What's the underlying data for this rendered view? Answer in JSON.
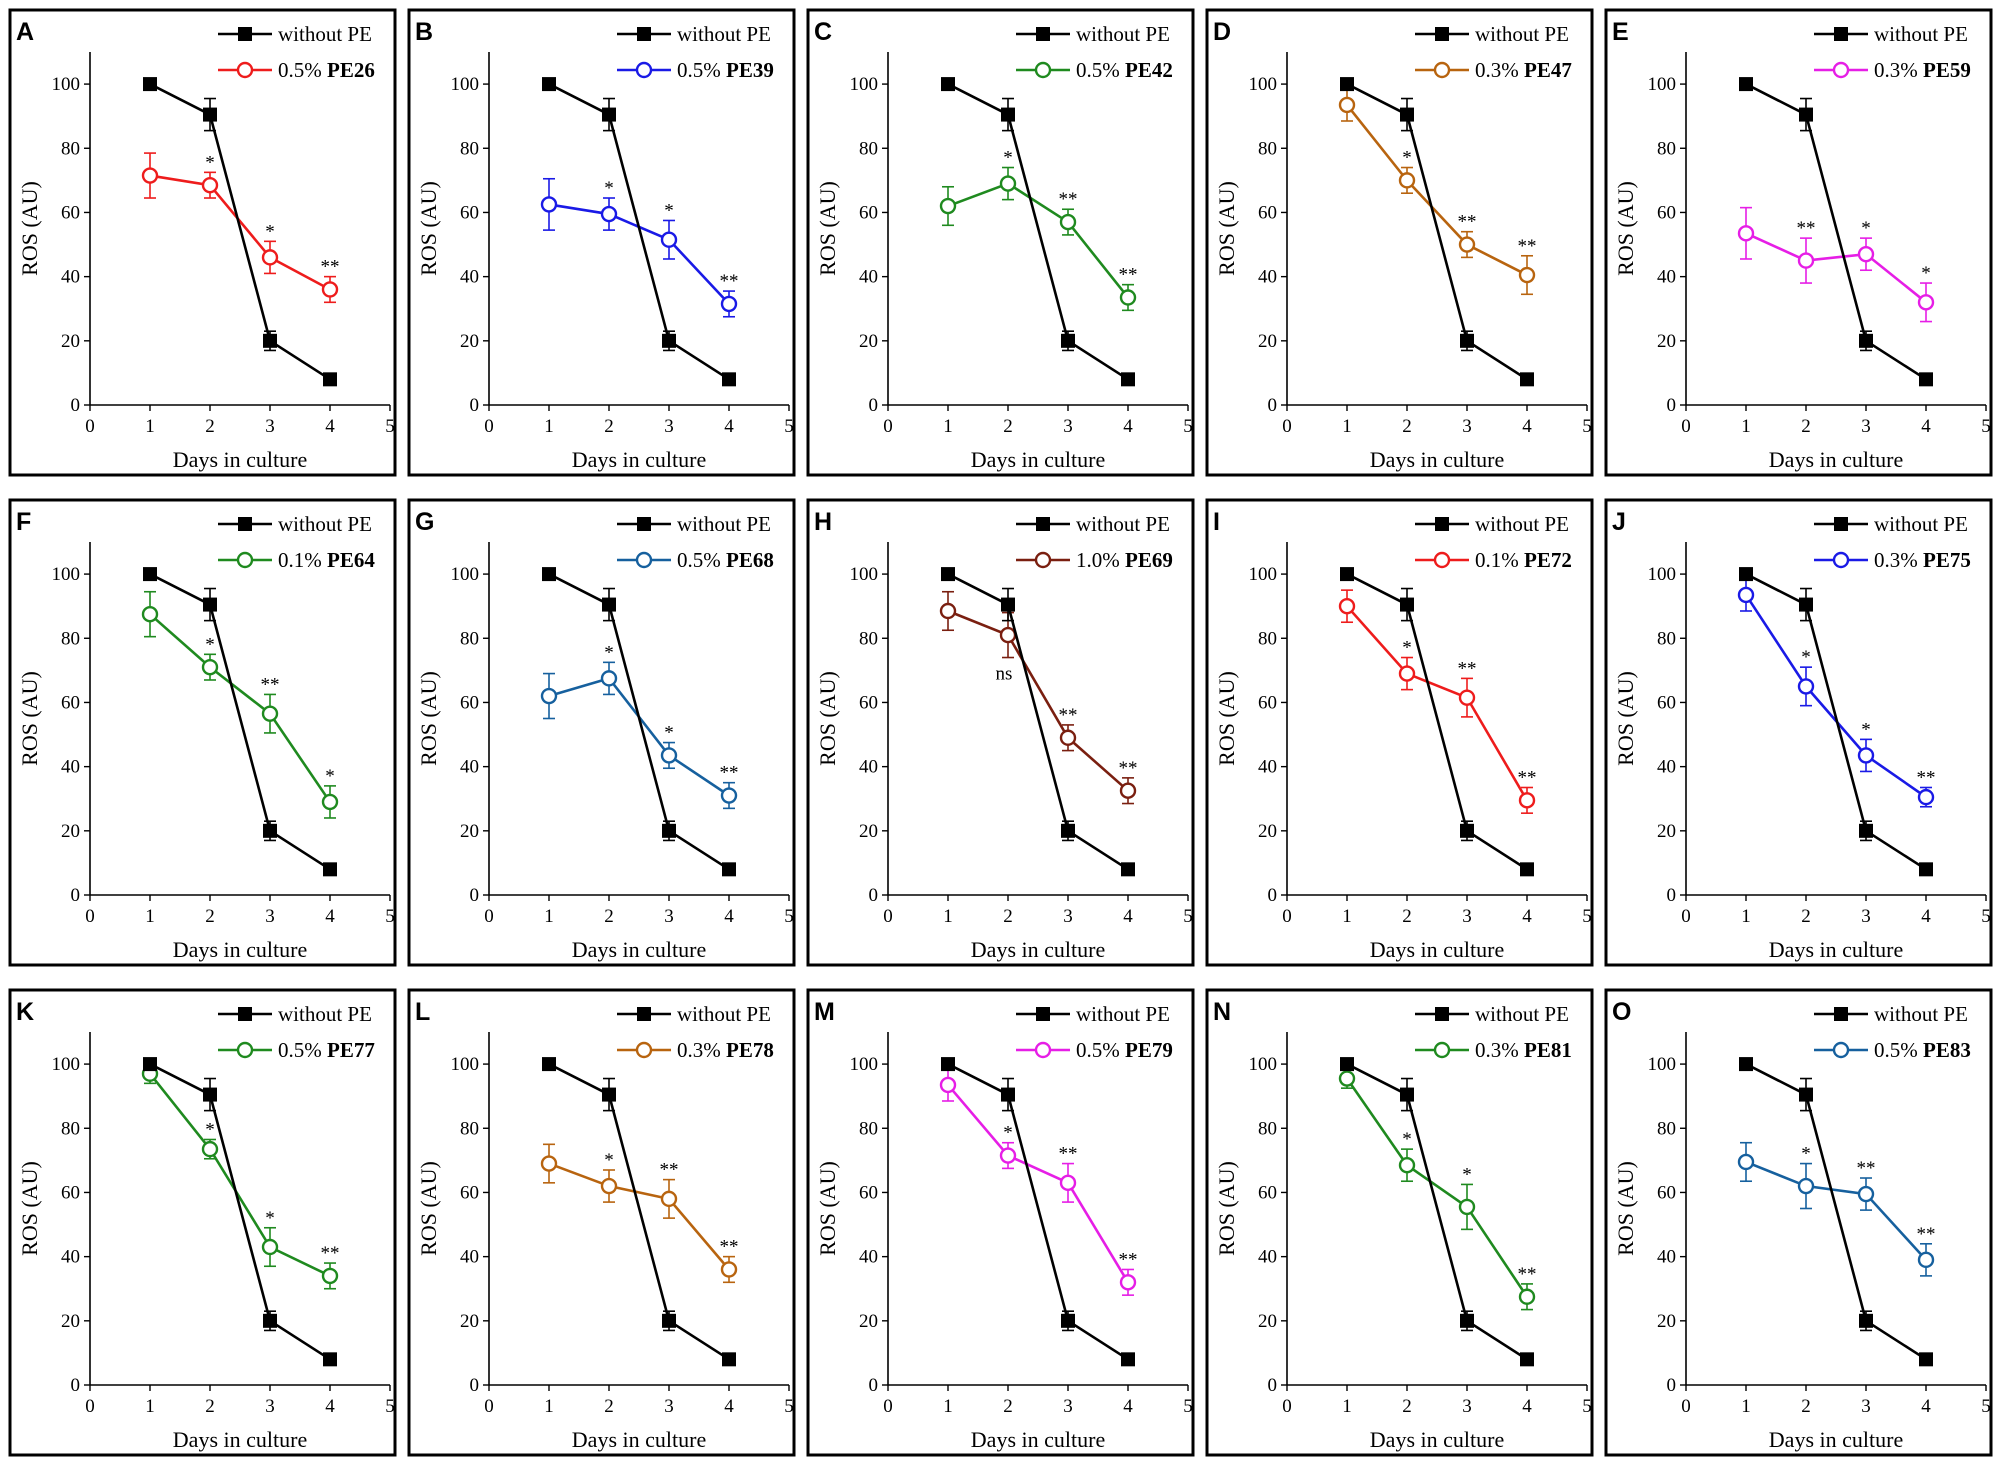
{
  "figure": {
    "control_name": "without PE",
    "x_axis_label": "Days in culture",
    "y_axis_label": "ROS (AU)"
  },
  "chart_data": [
    {
      "panel": "A",
      "type": "line",
      "x": [
        1,
        2,
        3,
        4
      ],
      "xlim": [
        0,
        5
      ],
      "ylim": [
        0,
        110
      ],
      "xticks": [
        0,
        1,
        2,
        3,
        4,
        5
      ],
      "yticks": [
        0,
        20,
        40,
        60,
        80,
        100
      ],
      "xlabel": "Days in culture",
      "ylabel": "ROS (AU)",
      "legend": "top-right",
      "series": [
        {
          "name": "without PE",
          "values": [
            100,
            90.5,
            20,
            8
          ],
          "errors": [
            0,
            5,
            3,
            1
          ],
          "color": "#000000",
          "marker": "filled-square"
        },
        {
          "name": "0.5% PE26",
          "name_prefix": "0.5%",
          "name_bold": "PE26",
          "values": [
            71.5,
            68.5,
            46,
            36
          ],
          "errors": [
            7,
            4,
            5,
            4
          ],
          "color": "#ee1c1c",
          "marker": "open-circle",
          "sig": [
            "",
            "*",
            "*",
            "**"
          ]
        }
      ]
    },
    {
      "panel": "B",
      "type": "line",
      "x": [
        1,
        2,
        3,
        4
      ],
      "xlim": [
        0,
        5
      ],
      "ylim": [
        0,
        110
      ],
      "xticks": [
        0,
        1,
        2,
        3,
        4,
        5
      ],
      "yticks": [
        0,
        20,
        40,
        60,
        80,
        100
      ],
      "xlabel": "Days in culture",
      "ylabel": "ROS (AU)",
      "legend": "top-right",
      "series": [
        {
          "name": "without PE",
          "values": [
            100,
            90.5,
            20,
            8
          ],
          "errors": [
            0,
            5,
            3,
            1
          ],
          "color": "#000000",
          "marker": "filled-square"
        },
        {
          "name": "0.5% PE39",
          "name_prefix": "0.5%",
          "name_bold": "PE39",
          "values": [
            62.5,
            59.5,
            51.5,
            31.5
          ],
          "errors": [
            8,
            5,
            6,
            4
          ],
          "color": "#1a1ae6",
          "marker": "open-circle",
          "sig": [
            "",
            "*",
            "*",
            "**"
          ]
        }
      ]
    },
    {
      "panel": "C",
      "type": "line",
      "x": [
        1,
        2,
        3,
        4
      ],
      "xlim": [
        0,
        5
      ],
      "ylim": [
        0,
        110
      ],
      "xticks": [
        0,
        1,
        2,
        3,
        4,
        5
      ],
      "yticks": [
        0,
        20,
        40,
        60,
        80,
        100
      ],
      "xlabel": "Days in culture",
      "ylabel": "ROS (AU)",
      "legend": "top-right",
      "series": [
        {
          "name": "without PE",
          "values": [
            100,
            90.5,
            20,
            8
          ],
          "errors": [
            0,
            5,
            3,
            1
          ],
          "color": "#000000",
          "marker": "filled-square"
        },
        {
          "name": "0.5% PE42",
          "name_prefix": "0.5%",
          "name_bold": "PE42",
          "values": [
            62,
            69,
            57,
            33.5
          ],
          "errors": [
            6,
            5,
            4,
            4
          ],
          "color": "#1f8a1f",
          "marker": "open-circle",
          "sig": [
            "",
            "*",
            "**",
            "**"
          ]
        }
      ]
    },
    {
      "panel": "D",
      "type": "line",
      "x": [
        1,
        2,
        3,
        4
      ],
      "xlim": [
        0,
        5
      ],
      "ylim": [
        0,
        110
      ],
      "xticks": [
        0,
        1,
        2,
        3,
        4,
        5
      ],
      "yticks": [
        0,
        20,
        40,
        60,
        80,
        100
      ],
      "xlabel": "Days in culture",
      "ylabel": "ROS (AU)",
      "legend": "top-right",
      "series": [
        {
          "name": "without PE",
          "values": [
            100,
            90.5,
            20,
            8
          ],
          "errors": [
            0,
            5,
            3,
            1
          ],
          "color": "#000000",
          "marker": "filled-square"
        },
        {
          "name": "0.3% PE47",
          "name_prefix": "0.3%",
          "name_bold": "PE47",
          "values": [
            93.5,
            70,
            50,
            40.5
          ],
          "errors": [
            5,
            4,
            4,
            6
          ],
          "color": "#b8640f",
          "marker": "open-circle",
          "sig": [
            "",
            "*",
            "**",
            "**"
          ]
        }
      ]
    },
    {
      "panel": "E",
      "type": "line",
      "x": [
        1,
        2,
        3,
        4
      ],
      "xlim": [
        0,
        5
      ],
      "ylim": [
        0,
        110
      ],
      "xticks": [
        0,
        1,
        2,
        3,
        4,
        5
      ],
      "yticks": [
        0,
        20,
        40,
        60,
        80,
        100
      ],
      "xlabel": "Days in culture",
      "ylabel": "ROS (AU)",
      "legend": "top-right",
      "series": [
        {
          "name": "without PE",
          "values": [
            100,
            90.5,
            20,
            8
          ],
          "errors": [
            0,
            5,
            3,
            1
          ],
          "color": "#000000",
          "marker": "filled-square"
        },
        {
          "name": "0.3% PE59",
          "name_prefix": "0.3%",
          "name_bold": "PE59",
          "values": [
            53.5,
            45,
            47,
            32
          ],
          "errors": [
            8,
            7,
            5,
            6
          ],
          "color": "#e61ee6",
          "marker": "open-circle",
          "sig": [
            "",
            "**",
            "*",
            "*"
          ]
        }
      ]
    },
    {
      "panel": "F",
      "type": "line",
      "x": [
        1,
        2,
        3,
        4
      ],
      "xlim": [
        0,
        5
      ],
      "ylim": [
        0,
        110
      ],
      "xticks": [
        0,
        1,
        2,
        3,
        4,
        5
      ],
      "yticks": [
        0,
        20,
        40,
        60,
        80,
        100
      ],
      "xlabel": "Days in culture",
      "ylabel": "ROS (AU)",
      "legend": "top-right",
      "series": [
        {
          "name": "without PE",
          "values": [
            100,
            90.5,
            20,
            8
          ],
          "errors": [
            0,
            5,
            3,
            1
          ],
          "color": "#000000",
          "marker": "filled-square"
        },
        {
          "name": "0.1% PE64",
          "name_prefix": "0.1%",
          "name_bold": "PE64",
          "values": [
            87.5,
            71,
            56.5,
            29
          ],
          "errors": [
            7,
            4,
            6,
            5
          ],
          "color": "#1f8a1f",
          "marker": "open-circle",
          "sig": [
            "",
            "*",
            "**",
            "*"
          ]
        }
      ]
    },
    {
      "panel": "G",
      "type": "line",
      "x": [
        1,
        2,
        3,
        4
      ],
      "xlim": [
        0,
        5
      ],
      "ylim": [
        0,
        110
      ],
      "xticks": [
        0,
        1,
        2,
        3,
        4,
        5
      ],
      "yticks": [
        0,
        20,
        40,
        60,
        80,
        100
      ],
      "xlabel": "Days in culture",
      "ylabel": "ROS (AU)",
      "legend": "top-right",
      "series": [
        {
          "name": "without PE",
          "values": [
            100,
            90.5,
            20,
            8
          ],
          "errors": [
            0,
            5,
            3,
            1
          ],
          "color": "#000000",
          "marker": "filled-square"
        },
        {
          "name": "0.5% PE68",
          "name_prefix": "0.5%",
          "name_bold": "PE68",
          "values": [
            62,
            67.5,
            43.5,
            31
          ],
          "errors": [
            7,
            5,
            4,
            4
          ],
          "color": "#16609e",
          "marker": "open-circle",
          "sig": [
            "",
            "*",
            "*",
            "**"
          ]
        }
      ]
    },
    {
      "panel": "H",
      "type": "line",
      "x": [
        1,
        2,
        3,
        4
      ],
      "xlim": [
        0,
        5
      ],
      "ylim": [
        0,
        110
      ],
      "xticks": [
        0,
        1,
        2,
        3,
        4,
        5
      ],
      "yticks": [
        0,
        20,
        40,
        60,
        80,
        100
      ],
      "xlabel": "Days in culture",
      "ylabel": "ROS (AU)",
      "legend": "top-right",
      "series": [
        {
          "name": "without PE",
          "values": [
            100,
            90.5,
            20,
            8
          ],
          "errors": [
            0,
            5,
            3,
            1
          ],
          "color": "#000000",
          "marker": "filled-square"
        },
        {
          "name": "1.0% PE69",
          "name_prefix": "1.0%",
          "name_bold": "PE69",
          "values": [
            88.5,
            81,
            49,
            32.5
          ],
          "errors": [
            6,
            7,
            4,
            4
          ],
          "color": "#7a1f10",
          "marker": "open-circle",
          "sig": [
            "",
            "ns",
            "**",
            "**"
          ]
        }
      ]
    },
    {
      "panel": "I",
      "type": "line",
      "x": [
        1,
        2,
        3,
        4
      ],
      "xlim": [
        0,
        5
      ],
      "ylim": [
        0,
        110
      ],
      "xticks": [
        0,
        1,
        2,
        3,
        4,
        5
      ],
      "yticks": [
        0,
        20,
        40,
        60,
        80,
        100
      ],
      "xlabel": "Days in culture",
      "ylabel": "ROS (AU)",
      "legend": "top-right",
      "series": [
        {
          "name": "without PE",
          "values": [
            100,
            90.5,
            20,
            8
          ],
          "errors": [
            0,
            5,
            3,
            1
          ],
          "color": "#000000",
          "marker": "filled-square"
        },
        {
          "name": "0.1% PE72",
          "name_prefix": "0.1%",
          "name_bold": "PE72",
          "values": [
            90,
            69,
            61.5,
            29.5
          ],
          "errors": [
            5,
            5,
            6,
            4
          ],
          "color": "#ee1c1c",
          "marker": "open-circle",
          "sig": [
            "",
            "*",
            "**",
            "**"
          ]
        }
      ]
    },
    {
      "panel": "J",
      "type": "line",
      "x": [
        1,
        2,
        3,
        4
      ],
      "xlim": [
        0,
        5
      ],
      "ylim": [
        0,
        110
      ],
      "xticks": [
        0,
        1,
        2,
        3,
        4,
        5
      ],
      "yticks": [
        0,
        20,
        40,
        60,
        80,
        100
      ],
      "xlabel": "Days in culture",
      "ylabel": "ROS (AU)",
      "legend": "top-right",
      "series": [
        {
          "name": "without PE",
          "values": [
            100,
            90.5,
            20,
            8
          ],
          "errors": [
            0,
            5,
            3,
            1
          ],
          "color": "#000000",
          "marker": "filled-square"
        },
        {
          "name": "0.3% PE75",
          "name_prefix": "0.3%",
          "name_bold": "PE75",
          "values": [
            93.5,
            65,
            43.5,
            30.5
          ],
          "errors": [
            5,
            6,
            5,
            3
          ],
          "color": "#1a1ae6",
          "marker": "open-circle",
          "sig": [
            "",
            "*",
            "*",
            "**"
          ]
        }
      ]
    },
    {
      "panel": "K",
      "type": "line",
      "x": [
        1,
        2,
        3,
        4
      ],
      "xlim": [
        0,
        5
      ],
      "ylim": [
        0,
        110
      ],
      "xticks": [
        0,
        1,
        2,
        3,
        4,
        5
      ],
      "yticks": [
        0,
        20,
        40,
        60,
        80,
        100
      ],
      "xlabel": "Days in culture",
      "ylabel": "ROS (AU)",
      "legend": "top-right",
      "series": [
        {
          "name": "without PE",
          "values": [
            100,
            90.5,
            20,
            8
          ],
          "errors": [
            0,
            5,
            3,
            1
          ],
          "color": "#000000",
          "marker": "filled-square"
        },
        {
          "name": "0.5% PE77",
          "name_prefix": "0.5%",
          "name_bold": "PE77",
          "values": [
            97,
            73.5,
            43,
            34
          ],
          "errors": [
            3,
            3,
            6,
            4
          ],
          "color": "#1f8a1f",
          "marker": "open-circle",
          "sig": [
            "",
            "*",
            "*",
            "**"
          ]
        }
      ]
    },
    {
      "panel": "L",
      "type": "line",
      "x": [
        1,
        2,
        3,
        4
      ],
      "xlim": [
        0,
        5
      ],
      "ylim": [
        0,
        110
      ],
      "xticks": [
        0,
        1,
        2,
        3,
        4,
        5
      ],
      "yticks": [
        0,
        20,
        40,
        60,
        80,
        100
      ],
      "xlabel": "Days in culture",
      "ylabel": "ROS (AU)",
      "legend": "top-right",
      "series": [
        {
          "name": "without PE",
          "values": [
            100,
            90.5,
            20,
            8
          ],
          "errors": [
            0,
            5,
            3,
            1
          ],
          "color": "#000000",
          "marker": "filled-square"
        },
        {
          "name": "0.3% PE78",
          "name_prefix": "0.3%",
          "name_bold": "PE78",
          "values": [
            69,
            62,
            58,
            36
          ],
          "errors": [
            6,
            5,
            6,
            4
          ],
          "color": "#b8640f",
          "marker": "open-circle",
          "sig": [
            "",
            "*",
            "**",
            "**"
          ]
        }
      ]
    },
    {
      "panel": "M",
      "type": "line",
      "x": [
        1,
        2,
        3,
        4
      ],
      "xlim": [
        0,
        5
      ],
      "ylim": [
        0,
        110
      ],
      "xticks": [
        0,
        1,
        2,
        3,
        4,
        5
      ],
      "yticks": [
        0,
        20,
        40,
        60,
        80,
        100
      ],
      "xlabel": "Days in culture",
      "ylabel": "ROS (AU)",
      "legend": "top-right",
      "series": [
        {
          "name": "without PE",
          "values": [
            100,
            90.5,
            20,
            8
          ],
          "errors": [
            0,
            5,
            3,
            1
          ],
          "color": "#000000",
          "marker": "filled-square"
        },
        {
          "name": "0.5% PE79",
          "name_prefix": "0.5%",
          "name_bold": "PE79",
          "values": [
            93.5,
            71.5,
            63,
            32
          ],
          "errors": [
            5,
            4,
            6,
            4
          ],
          "color": "#e61ee6",
          "marker": "open-circle",
          "sig": [
            "",
            "*",
            "**",
            "**"
          ]
        }
      ]
    },
    {
      "panel": "N",
      "type": "line",
      "x": [
        1,
        2,
        3,
        4
      ],
      "xlim": [
        0,
        5
      ],
      "ylim": [
        0,
        110
      ],
      "xticks": [
        0,
        1,
        2,
        3,
        4,
        5
      ],
      "yticks": [
        0,
        20,
        40,
        60,
        80,
        100
      ],
      "xlabel": "Days in culture",
      "ylabel": "ROS (AU)",
      "legend": "top-right",
      "series": [
        {
          "name": "without PE",
          "values": [
            100,
            90.5,
            20,
            8
          ],
          "errors": [
            0,
            5,
            3,
            1
          ],
          "color": "#000000",
          "marker": "filled-square"
        },
        {
          "name": "0.3% PE81",
          "name_prefix": "0.3%",
          "name_bold": "PE81",
          "values": [
            95.5,
            68.5,
            55.5,
            27.5
          ],
          "errors": [
            3,
            5,
            7,
            4
          ],
          "color": "#1f8a1f",
          "marker": "open-circle",
          "sig": [
            "",
            "*",
            "*",
            "**"
          ]
        }
      ]
    },
    {
      "panel": "O",
      "type": "line",
      "x": [
        1,
        2,
        3,
        4
      ],
      "xlim": [
        0,
        5
      ],
      "ylim": [
        0,
        110
      ],
      "xticks": [
        0,
        1,
        2,
        3,
        4,
        5
      ],
      "yticks": [
        0,
        20,
        40,
        60,
        80,
        100
      ],
      "xlabel": "Days in culture",
      "ylabel": "ROS (AU)",
      "legend": "top-right",
      "series": [
        {
          "name": "without PE",
          "values": [
            100,
            90.5,
            20,
            8
          ],
          "errors": [
            0,
            5,
            3,
            1
          ],
          "color": "#000000",
          "marker": "filled-square"
        },
        {
          "name": "0.5% PE83",
          "name_prefix": "0.5%",
          "name_bold": "PE83",
          "values": [
            69.5,
            62,
            59.5,
            39
          ],
          "errors": [
            6,
            7,
            5,
            5
          ],
          "color": "#16609e",
          "marker": "open-circle",
          "sig": [
            "",
            "*",
            "**",
            "**"
          ]
        }
      ]
    }
  ]
}
